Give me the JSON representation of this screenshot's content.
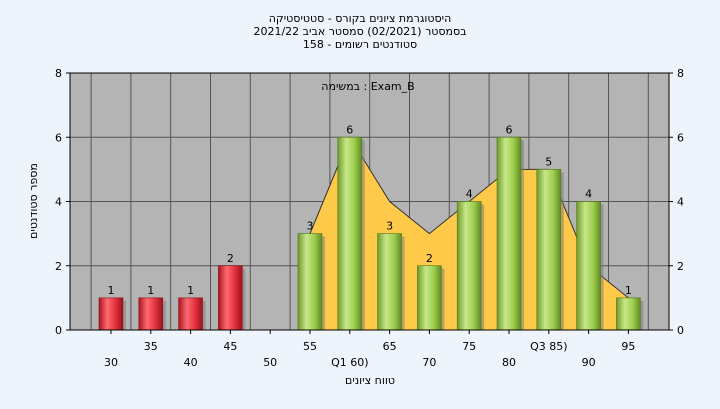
{
  "chart_data": {
    "type": "bar",
    "title_lines": [
      "היסטוגרמת ציונים בקורס - סטטיסטיקה",
      "בסמסטר  (02/2021)  סמסטר אביב 2021/22",
      "סטודנטים רשומים - 158"
    ],
    "annotation": "במשימה : Exam_B",
    "xlabel": "טווח ציונים",
    "ylabel": "מספר סטודנטים",
    "ylim": [
      0,
      8
    ],
    "yticks": [
      0,
      2,
      4,
      6,
      8
    ],
    "grid": true,
    "categories": [
      "30",
      "35",
      "40",
      "45",
      "50",
      "55",
      "Q1 60)",
      "65",
      "70",
      "75",
      "80",
      "Q3 85)",
      "90",
      "95"
    ],
    "x_label_row": [
      "lower",
      "upper",
      "lower",
      "upper",
      "lower",
      "upper",
      "lower",
      "upper",
      "lower",
      "upper",
      "lower",
      "upper",
      "lower",
      "upper"
    ],
    "values": [
      1,
      1,
      1,
      2,
      0,
      3,
      6,
      3,
      2,
      4,
      6,
      5,
      4,
      1
    ],
    "bar_colors": [
      "red",
      "red",
      "red",
      "red",
      "none",
      "green",
      "green",
      "green",
      "green",
      "green",
      "green",
      "green",
      "green",
      "green"
    ],
    "area_series": [
      0,
      0,
      0,
      0,
      0,
      3,
      6,
      4,
      3,
      4,
      5,
      5,
      2,
      1
    ],
    "colors": {
      "plot_bg": "#b4b4b4",
      "page_bg": "#eef4fb",
      "red_bar": "#e0303a",
      "green_bar": "#9ccc4c",
      "area": "#ffc94a",
      "grid": "#555555"
    }
  }
}
